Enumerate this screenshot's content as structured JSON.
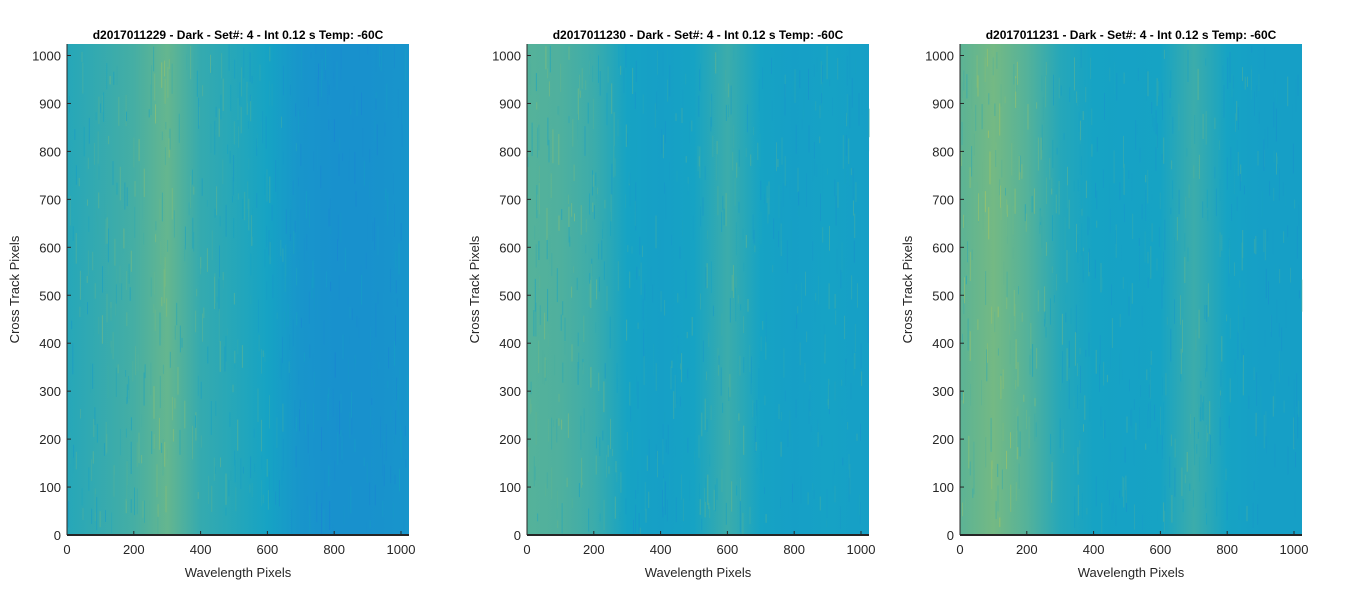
{
  "chart_data": [
    {
      "type": "heatmap",
      "title": "d2017011229 - Dark - Set#: 4 - Int 0.12 s Temp: -60C",
      "xlabel": "Wavelength Pixels",
      "ylabel": "Cross Track Pixels",
      "xlim": [
        0,
        1024
      ],
      "ylim": [
        0,
        1024
      ],
      "xticks": [
        0,
        200,
        400,
        600,
        800,
        1000
      ],
      "yticks": [
        0,
        100,
        200,
        300,
        400,
        500,
        600,
        700,
        800,
        900,
        1000
      ],
      "column_profile": {
        "x": [
          0,
          100,
          200,
          300,
          400,
          500,
          600,
          700,
          800,
          900,
          1024
        ],
        "intensity": [
          0.55,
          0.6,
          0.65,
          0.75,
          0.6,
          0.55,
          0.5,
          0.3,
          0.25,
          0.25,
          0.3
        ]
      },
      "colors": {
        "low": "#1a7fd6",
        "mid": "#16a3c4",
        "high": "#b3c85a"
      }
    },
    {
      "type": "heatmap",
      "title": "d2017011230 - Dark - Set#: 4 - Int 0.12 s Temp: -60C",
      "xlabel": "Wavelength Pixels",
      "ylabel": "Cross Track Pixels",
      "xlim": [
        0,
        1024
      ],
      "ylim": [
        0,
        1024
      ],
      "xticks": [
        0,
        200,
        400,
        600,
        800,
        1000
      ],
      "yticks": [
        0,
        100,
        200,
        300,
        400,
        500,
        600,
        700,
        800,
        900,
        1000
      ],
      "column_profile": {
        "x": [
          0,
          100,
          200,
          300,
          400,
          500,
          600,
          700,
          800,
          900,
          1024
        ],
        "intensity": [
          0.7,
          0.68,
          0.62,
          0.5,
          0.45,
          0.5,
          0.62,
          0.5,
          0.45,
          0.48,
          0.45
        ]
      },
      "colors": {
        "low": "#1a7fd6",
        "mid": "#16a3c4",
        "high": "#b3c85a"
      }
    },
    {
      "type": "heatmap",
      "title": "d2017011231 - Dark - Set#: 4 - Int 0.12 s Temp: -60C",
      "xlabel": "Wavelength Pixels",
      "ylabel": "Cross Track Pixels",
      "xlim": [
        0,
        1024
      ],
      "ylim": [
        0,
        1024
      ],
      "xticks": [
        0,
        200,
        400,
        600,
        800,
        1000
      ],
      "yticks": [
        0,
        100,
        200,
        300,
        400,
        500,
        600,
        700,
        800,
        900,
        1000
      ],
      "column_profile": {
        "x": [
          0,
          100,
          200,
          300,
          400,
          500,
          600,
          700,
          800,
          900,
          1024
        ],
        "intensity": [
          0.72,
          0.8,
          0.7,
          0.55,
          0.5,
          0.48,
          0.5,
          0.62,
          0.5,
          0.45,
          0.45
        ]
      },
      "colors": {
        "low": "#1a7fd6",
        "mid": "#16a3c4",
        "high": "#b3c85a"
      }
    }
  ]
}
